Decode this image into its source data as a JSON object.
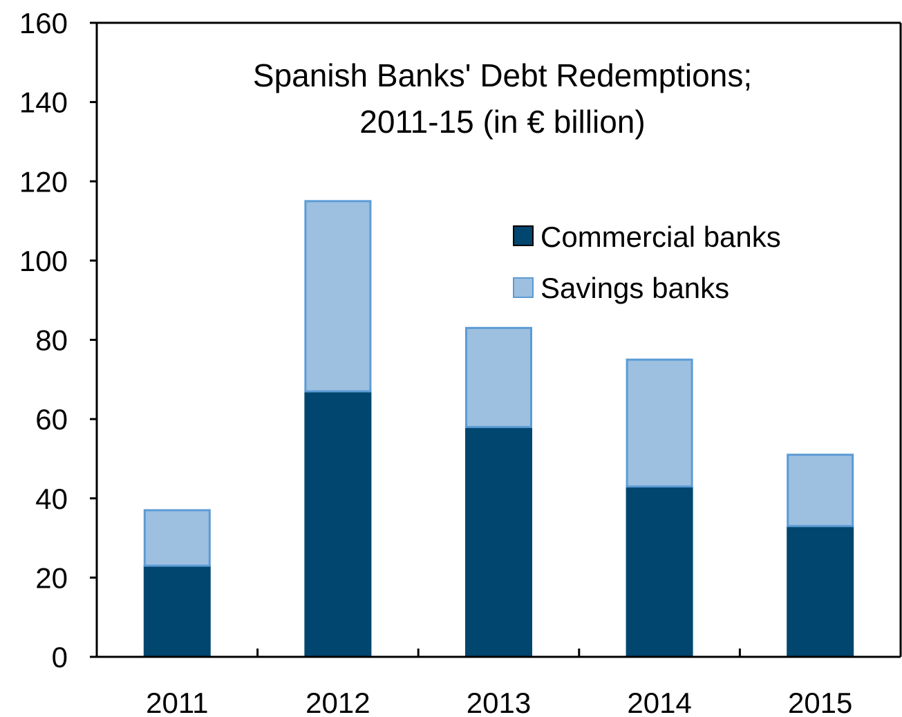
{
  "chart_data": {
    "type": "bar",
    "stacked": true,
    "title": "Spanish  Banks' Debt Redemptions;",
    "subtitle": "2011-15 (in € billion)",
    "categories": [
      "2011",
      "2012",
      "2013",
      "2014",
      "2015"
    ],
    "series": [
      {
        "name": "Commercial banks",
        "values": [
          23,
          67,
          58,
          43,
          33
        ],
        "color": "#00466E"
      },
      {
        "name": "Savings banks",
        "values": [
          14,
          48,
          25,
          32,
          18
        ],
        "color": "#9DC0E0"
      }
    ],
    "ylim": [
      0,
      160
    ],
    "yticks": [
      0,
      20,
      40,
      60,
      80,
      100,
      120,
      140,
      160
    ],
    "grid": false,
    "legend_position": "upper-right"
  }
}
